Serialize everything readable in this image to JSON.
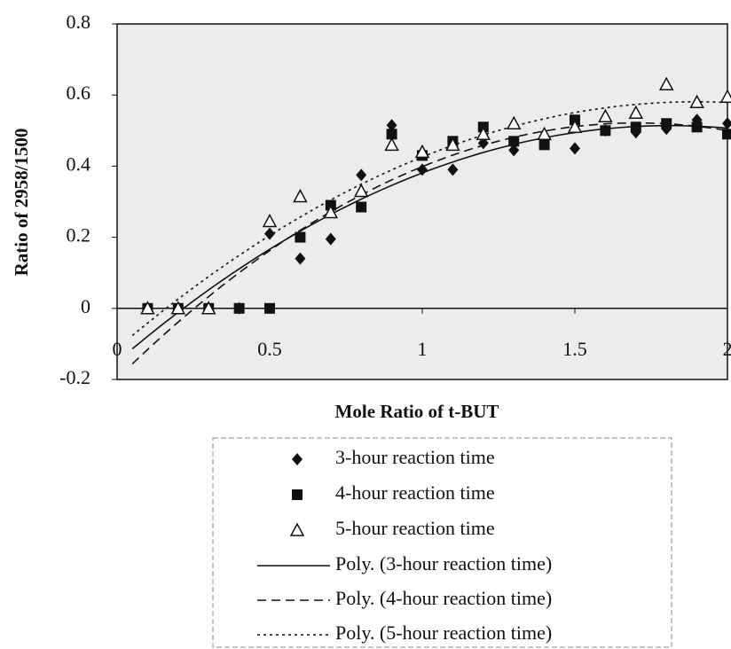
{
  "chart_data": {
    "type": "scatter",
    "x_label": "Mole Ratio of t-BUT",
    "y_label": "Ratio of 2958/1500",
    "xlim": [
      0,
      2
    ],
    "ylim": [
      -0.2,
      0.8
    ],
    "xticks": [
      0,
      0.5,
      1,
      1.5,
      2
    ],
    "yticks": [
      -0.2,
      0,
      0.2,
      0.4,
      0.6,
      0.8
    ],
    "series": [
      {
        "name": "3-hour reaction time",
        "marker": "diamond",
        "color": "#111111",
        "x": [
          0.1,
          0.2,
          0.3,
          0.4,
          0.5,
          0.6,
          0.7,
          0.8,
          0.9,
          1.0,
          1.1,
          1.2,
          1.3,
          1.4,
          1.5,
          1.6,
          1.7,
          1.8,
          1.9,
          2.0
        ],
        "values": [
          0,
          0,
          0,
          0,
          0.21,
          0.14,
          0.195,
          0.375,
          0.515,
          0.39,
          0.39,
          0.465,
          0.445,
          0.465,
          0.45,
          0.5,
          0.495,
          0.505,
          0.53,
          0.52
        ],
        "trendline": {
          "name": "Poly. (3-hour reaction time)",
          "dash": "solid"
        }
      },
      {
        "name": "4-hour reaction time",
        "marker": "square",
        "color": "#111111",
        "x": [
          0.1,
          0.2,
          0.3,
          0.4,
          0.5,
          0.6,
          0.7,
          0.8,
          0.9,
          1.0,
          1.1,
          1.2,
          1.3,
          1.4,
          1.5,
          1.6,
          1.7,
          1.8,
          1.9,
          2.0
        ],
        "values": [
          0,
          0,
          0,
          0,
          0,
          0.2,
          0.29,
          0.285,
          0.49,
          0.43,
          0.47,
          0.51,
          0.47,
          0.46,
          0.53,
          0.5,
          0.51,
          0.52,
          0.51,
          0.49
        ],
        "trendline": {
          "name": "Poly. (4-hour reaction time)",
          "dash": "dashed"
        }
      },
      {
        "name": "5-hour reaction time",
        "marker": "triangle",
        "color": "#111111",
        "x": [
          0.1,
          0.2,
          0.3,
          0.5,
          0.6,
          0.7,
          0.8,
          0.9,
          1.0,
          1.1,
          1.2,
          1.3,
          1.4,
          1.5,
          1.6,
          1.7,
          1.8,
          1.9,
          2.0
        ],
        "values": [
          0,
          0,
          0,
          0.245,
          0.315,
          0.27,
          0.33,
          0.46,
          0.44,
          0.46,
          0.49,
          0.52,
          0.49,
          0.51,
          0.54,
          0.55,
          0.63,
          0.58,
          0.595
        ],
        "trendline": {
          "name": "Poly. (5-hour reaction time)",
          "dash": "dotted"
        }
      }
    ]
  }
}
